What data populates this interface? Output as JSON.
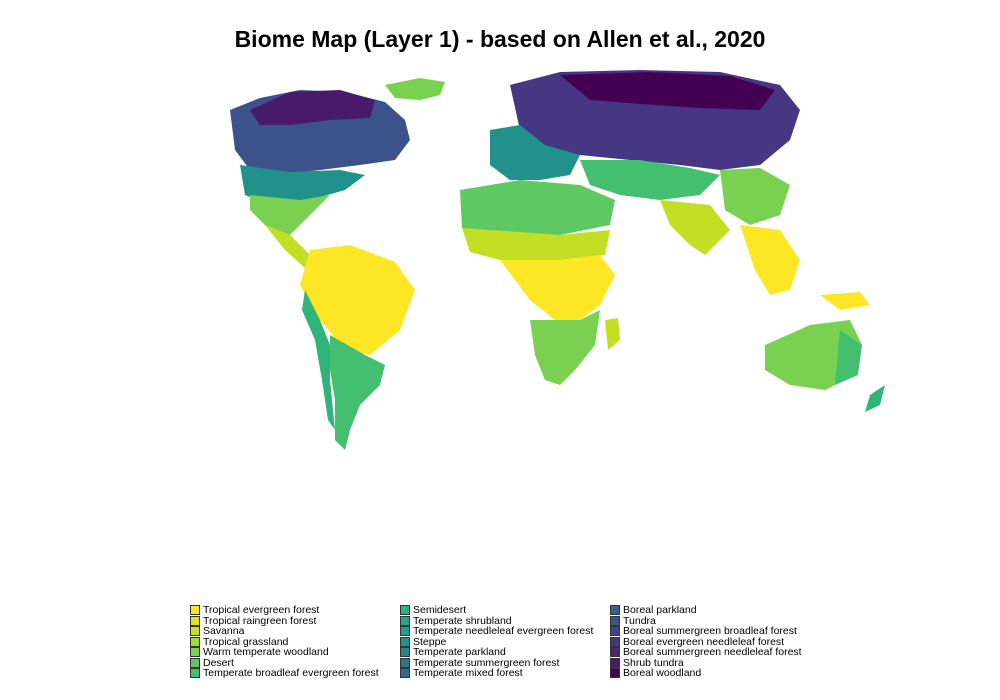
{
  "title": "Biome Map (Layer 1) - based on Allen et al., 2020",
  "legend": [
    {
      "label": "Tropical evergreen forest",
      "color": "#fde725"
    },
    {
      "label": "Tropical raingreen forest",
      "color": "#e2e418"
    },
    {
      "label": "Savanna",
      "color": "#c2df23"
    },
    {
      "label": "Tropical grassland",
      "color": "#9fda3a"
    },
    {
      "label": "Warm temperate woodland",
      "color": "#7ad151"
    },
    {
      "label": "Desert",
      "color": "#5ec962"
    },
    {
      "label": "Temperate broadleaf evergreen forest",
      "color": "#44bf70"
    },
    {
      "label": "Semidesert",
      "color": "#2fb47c"
    },
    {
      "label": "Temperate shrubland",
      "color": "#22a884"
    },
    {
      "label": "Temperate needleleaf evergreen forest",
      "color": "#1f9e89"
    },
    {
      "label": "Steppe",
      "color": "#21918c"
    },
    {
      "label": "Temperate parkland",
      "color": "#25858e"
    },
    {
      "label": "Temperate summergreen forest",
      "color": "#2a788e"
    },
    {
      "label": "Temperate mixed forest",
      "color": "#2f6c8e"
    },
    {
      "label": "Boreal parkland",
      "color": "#355f8d"
    },
    {
      "label": "Tundra",
      "color": "#3b528b"
    },
    {
      "label": "Boreal summergreen broadleaf forest",
      "color": "#414487"
    },
    {
      "label": "Boreal evergreen needleleaf forest",
      "color": "#453781"
    },
    {
      "label": "Boreal summergreen needleleaf forest",
      "color": "#482878"
    },
    {
      "label": "Shrub tundra",
      "color": "#481a6c"
    },
    {
      "label": "Boreal woodland",
      "color": "#440154"
    }
  ]
}
